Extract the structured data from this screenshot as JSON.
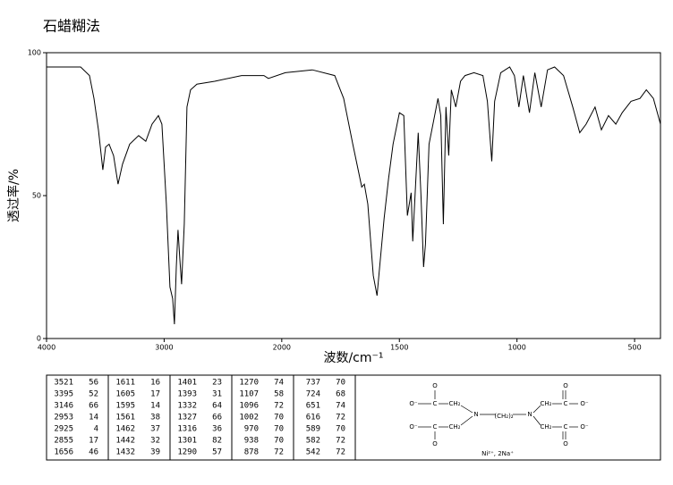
{
  "chart_data": {
    "type": "line",
    "title": "石蜡糊法",
    "x_label": "波数/cm⁻¹",
    "y_label": "透过率/%",
    "xlim": [
      4000,
      390
    ],
    "x_scale_break": 2000,
    "ylim": [
      0,
      100
    ],
    "xticks": [
      4000,
      3000,
      2000,
      1500,
      1000,
      500
    ],
    "yticks": [
      0,
      50,
      100
    ],
    "grid": false,
    "x": [
      4000,
      3710,
      3635,
      3597,
      3559,
      3521,
      3498,
      3468,
      3430,
      3392,
      3354,
      3293,
      3217,
      3156,
      3103,
      3049,
      3019,
      2981,
      2951,
      2928,
      2913,
      2897,
      2882,
      2867,
      2852,
      2829,
      2806,
      2776,
      2722,
      2570,
      2342,
      2152,
      2114,
      1985,
      1870,
      1775,
      1737,
      1698,
      1660,
      1649,
      1634,
      1611,
      1595,
      1584,
      1565,
      1546,
      1527,
      1500,
      1481,
      1466,
      1450,
      1443,
      1431,
      1420,
      1408,
      1397,
      1389,
      1374,
      1355,
      1336,
      1324,
      1313,
      1302,
      1290,
      1279,
      1260,
      1240,
      1221,
      1183,
      1145,
      1126,
      1107,
      1095,
      1069,
      1031,
      1011,
      992,
      973,
      947,
      924,
      897,
      870,
      840,
      802,
      763,
      733,
      706,
      668,
      641,
      611,
      580,
      553,
      515,
      477,
      450,
      420,
      390
    ],
    "series": [
      {
        "name": "spectrum",
        "color": "#000000",
        "values": [
          95,
          95,
          92,
          84,
          73,
          59,
          67,
          68,
          64,
          54,
          61,
          68,
          71,
          69,
          75,
          78,
          75,
          47,
          18,
          14,
          5,
          25,
          38,
          28,
          19,
          40,
          81,
          87,
          89,
          90,
          92,
          92,
          91,
          93,
          94,
          92,
          84,
          68,
          53,
          54,
          47,
          22,
          15,
          25,
          42,
          56,
          68,
          79,
          78,
          43,
          51,
          34,
          54,
          72,
          50,
          25,
          33,
          68,
          76,
          84,
          78,
          40,
          81,
          64,
          87,
          81,
          90,
          92,
          93,
          92,
          83,
          62,
          83,
          93,
          95,
          92,
          81,
          92,
          79,
          93,
          81,
          94,
          95,
          92,
          81,
          72,
          75,
          81,
          73,
          78,
          75,
          79,
          83,
          84,
          87,
          84,
          75
        ]
      }
    ]
  },
  "peak_table": {
    "rows": [
      [
        3521,
        56,
        1611,
        16,
        1401,
        23,
        1270,
        74,
        737,
        70
      ],
      [
        3395,
        52,
        1605,
        17,
        1393,
        31,
        1107,
        58,
        724,
        68
      ],
      [
        3146,
        66,
        1595,
        14,
        1332,
        64,
        1096,
        72,
        651,
        74
      ],
      [
        2953,
        14,
        1561,
        38,
        1327,
        66,
        1002,
        70,
        616,
        72
      ],
      [
        2925,
        4,
        1462,
        37,
        1316,
        36,
        970,
        70,
        589,
        70
      ],
      [
        2855,
        17,
        1442,
        32,
        1301,
        82,
        938,
        70,
        582,
        72
      ],
      [
        1656,
        46,
        1432,
        39,
        1290,
        57,
        878,
        72,
        542,
        72
      ]
    ]
  },
  "structure": {
    "atoms": [
      "O",
      "O⁻",
      "C",
      "CH₂",
      "N",
      "(CH₂)₂",
      "N",
      "CH₂",
      "C",
      "O",
      "O⁻",
      "O⁻",
      "C",
      "O",
      "CH₂",
      "CH₂",
      "C",
      "O",
      "O⁻"
    ],
    "counter_ions": "Ni²⁺, 2Na⁺"
  }
}
